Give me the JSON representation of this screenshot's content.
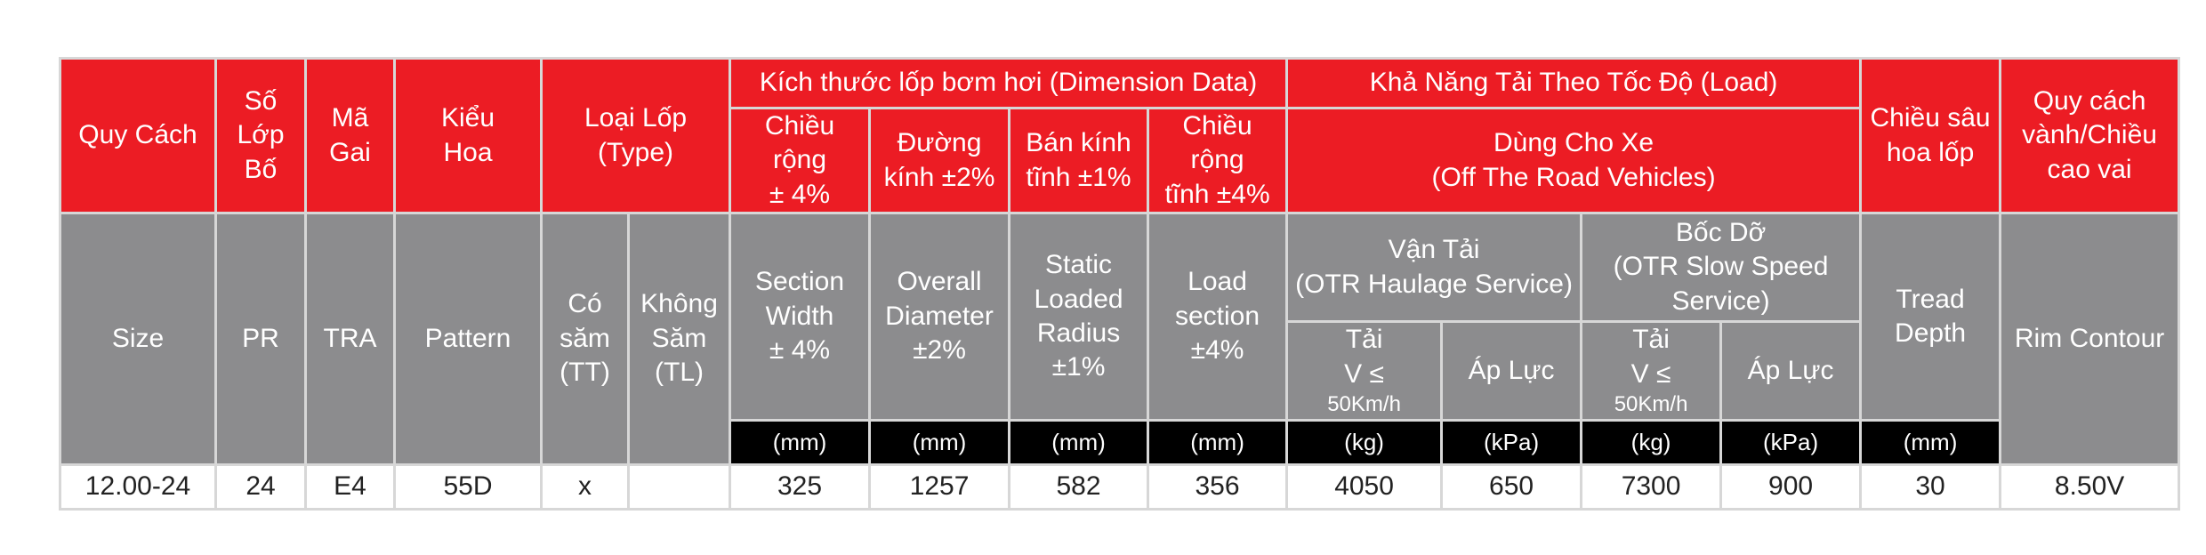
{
  "colors": {
    "red_header": "#ec1c24",
    "gray_header": "#8c8c8e",
    "unit_bar": "#000000",
    "border": "#d7d7d7"
  },
  "vn": {
    "size": "Quy Cách",
    "pr": [
      "Số",
      "Lớp",
      "Bố"
    ],
    "tra": [
      "Mã",
      "Gai"
    ],
    "pattern": [
      "Kiểu",
      "Hoa"
    ],
    "type": [
      "Loại Lốp",
      "(Type)"
    ],
    "dimension_group": "Kích thước lốp bơm hơi (Dimension Data)",
    "load_group": "Khả Năng Tải Theo Tốc Độ (Load)",
    "tread": [
      "Chiều sâu",
      "hoa lốp"
    ],
    "rim": [
      "Quy cách",
      "vành/Chiều",
      "cao vai"
    ],
    "width": [
      "Chiều rộng",
      "± 4%"
    ],
    "diameter": [
      "Đường",
      "kính ±2%"
    ],
    "radius": [
      "Bán kính",
      "tĩnh ±1%"
    ],
    "section": [
      "Chiều rộng",
      "tĩnh ±4%"
    ],
    "vehicle": [
      "Dùng Cho Xe",
      "(Off The Road Vehicles)"
    ]
  },
  "en": {
    "size": "Size",
    "pr": "PR",
    "tra": "TRA",
    "pattern": "Pattern",
    "tt": [
      "Có",
      "săm",
      "(TT)"
    ],
    "tl": [
      "Không",
      "Săm",
      "(TL)"
    ],
    "width": [
      "Section",
      "Width",
      "± 4%"
    ],
    "diameter": [
      "Overall",
      "Diameter",
      "±2%"
    ],
    "radius": [
      "Static",
      "Loaded",
      "Radius",
      "±1%"
    ],
    "section": [
      "Load",
      "section",
      "±4%"
    ],
    "haulage": [
      "Vận Tải",
      "(OTR Haulage Service)"
    ],
    "slow": [
      "Bốc Dỡ",
      "(OTR Slow Speed",
      "Service)"
    ],
    "load_h": [
      "Tải",
      "V ≤",
      "50Km/h"
    ],
    "pressure_h": "Áp Lực",
    "load_s": [
      "Tải",
      "V ≤",
      "50Km/h"
    ],
    "pressure_s": "Áp Lực",
    "tread": [
      "Tread",
      "Depth"
    ],
    "rim": "Rim Contour"
  },
  "units": [
    "(mm)",
    "(mm)",
    "(mm)",
    "(mm)",
    "(kg)",
    "(kPa)",
    "(kg)",
    "(kPa)",
    "(mm)"
  ],
  "rows": [
    {
      "size": "12.00-24",
      "pr": "24",
      "tra": "E4",
      "pattern": "55D",
      "tt": "x",
      "tl": "",
      "width": "325",
      "diameter": "1257",
      "radius": "582",
      "section": "356",
      "load_h": "4050",
      "pressure_h": "650",
      "load_s": "7300",
      "pressure_s": "900",
      "tread": "30",
      "rim": "8.50V"
    }
  ]
}
